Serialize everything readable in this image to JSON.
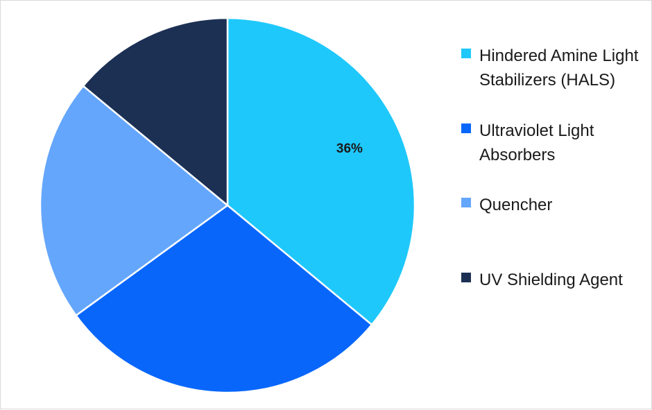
{
  "chart_data": {
    "type": "pie",
    "categories": [
      "Hindered Amine Light Stabilizers (HALS)",
      "Ultraviolet Light Absorbers",
      "Quencher",
      "UV Shielding Agent"
    ],
    "values": [
      36,
      29,
      21,
      14
    ],
    "data_labels": [
      "36%",
      "",
      "",
      ""
    ],
    "colors": [
      "#1fc8fb",
      "#0866fb",
      "#64a6fc",
      "#1c3054"
    ],
    "legend": {
      "placement": "right",
      "entries": [
        "Hindered Amine Light Stabilizers (HALS)",
        "Ultraviolet Light Absorbers",
        "Quencher",
        "UV Shielding Agent"
      ]
    }
  }
}
